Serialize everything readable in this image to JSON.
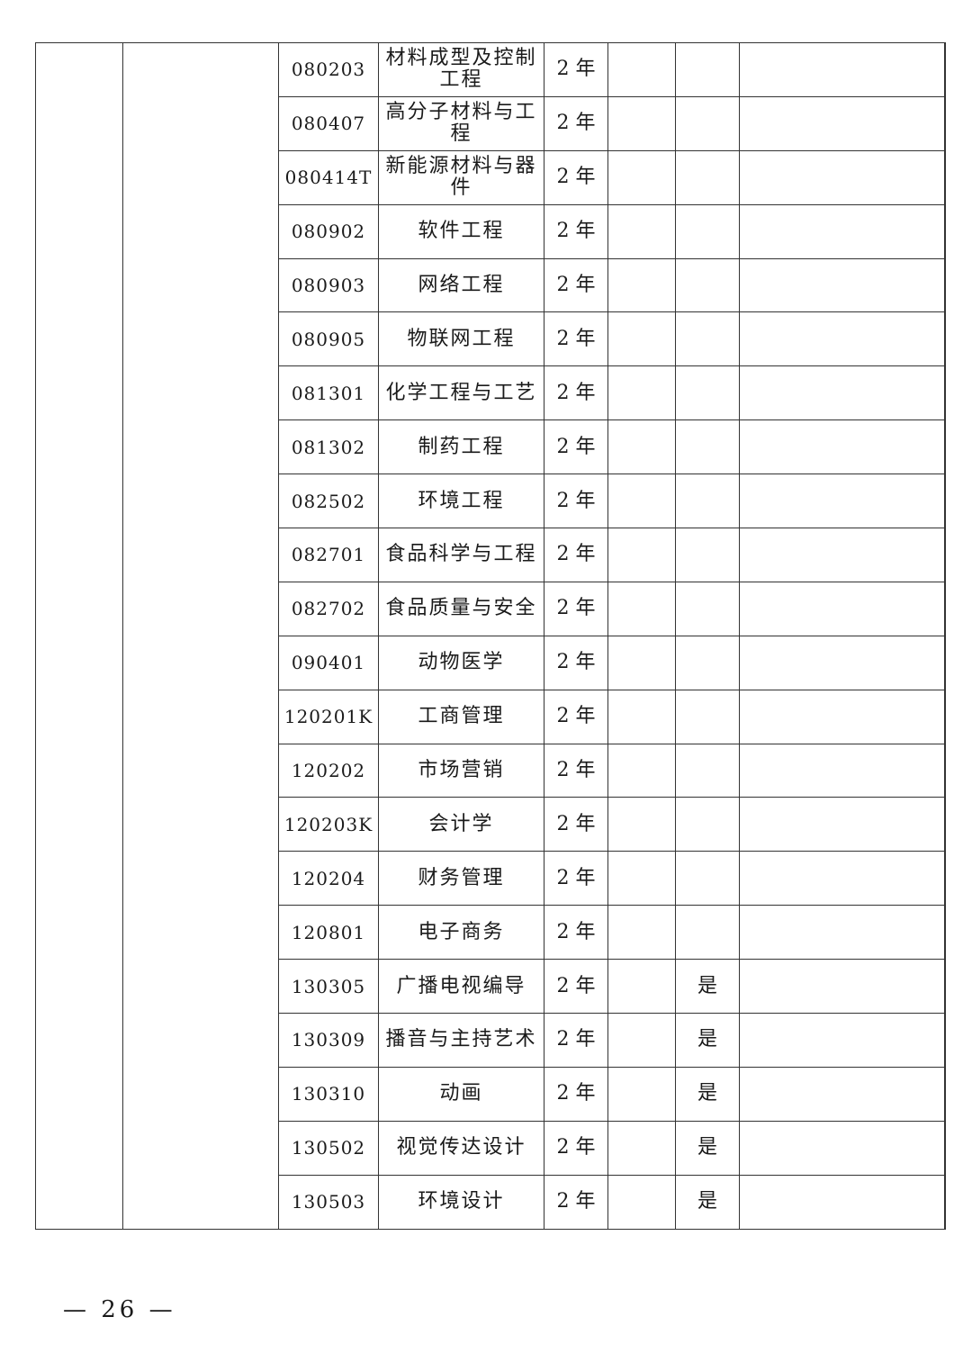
{
  "rows": [
    {
      "code": "080203",
      "name": "材料成型及控制工程",
      "duration": "2 年",
      "flag": ""
    },
    {
      "code": "080407",
      "name": "高分子材料与工程",
      "duration": "2 年",
      "flag": ""
    },
    {
      "code": "080414T",
      "name": "新能源材料与器件",
      "duration": "2 年",
      "flag": ""
    },
    {
      "code": "080902",
      "name": "软件工程",
      "duration": "2 年",
      "flag": ""
    },
    {
      "code": "080903",
      "name": "网络工程",
      "duration": "2 年",
      "flag": ""
    },
    {
      "code": "080905",
      "name": "物联网工程",
      "duration": "2 年",
      "flag": ""
    },
    {
      "code": "081301",
      "name": "化学工程与工艺",
      "duration": "2 年",
      "flag": ""
    },
    {
      "code": "081302",
      "name": "制药工程",
      "duration": "2 年",
      "flag": ""
    },
    {
      "code": "082502",
      "name": "环境工程",
      "duration": "2 年",
      "flag": ""
    },
    {
      "code": "082701",
      "name": "食品科学与工程",
      "duration": "2 年",
      "flag": ""
    },
    {
      "code": "082702",
      "name": "食品质量与安全",
      "duration": "2 年",
      "flag": ""
    },
    {
      "code": "090401",
      "name": "动物医学",
      "duration": "2 年",
      "flag": ""
    },
    {
      "code": "120201K",
      "name": "工商管理",
      "duration": "2 年",
      "flag": ""
    },
    {
      "code": "120202",
      "name": "市场营销",
      "duration": "2 年",
      "flag": ""
    },
    {
      "code": "120203K",
      "name": "会计学",
      "duration": "2 年",
      "flag": ""
    },
    {
      "code": "120204",
      "name": "财务管理",
      "duration": "2 年",
      "flag": ""
    },
    {
      "code": "120801",
      "name": "电子商务",
      "duration": "2 年",
      "flag": ""
    },
    {
      "code": "130305",
      "name": "广播电视编导",
      "duration": "2 年",
      "flag": "是"
    },
    {
      "code": "130309",
      "name": "播音与主持艺术",
      "duration": "2 年",
      "flag": "是"
    },
    {
      "code": "130310",
      "name": "动画",
      "duration": "2 年",
      "flag": "是"
    },
    {
      "code": "130502",
      "name": "视觉传达设计",
      "duration": "2 年",
      "flag": "是"
    },
    {
      "code": "130503",
      "name": "环境设计",
      "duration": "2 年",
      "flag": "是"
    }
  ],
  "page_number": "— 26 —"
}
